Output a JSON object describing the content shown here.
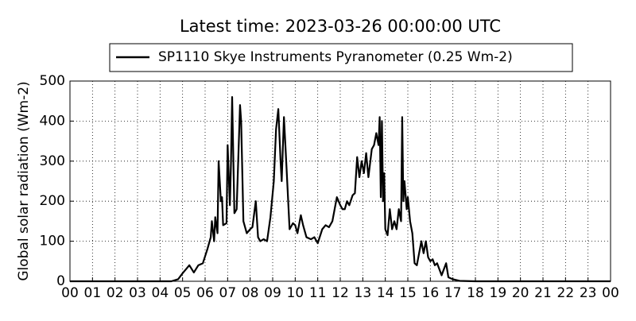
{
  "chart_data": {
    "type": "line",
    "title": "Latest time: 2023-03-26 00:00:00 UTC",
    "y_label": "Global solar radiation (Wm-2)",
    "grid": true,
    "legend_position": "top",
    "xlim": [
      0,
      24
    ],
    "ylim": [
      0,
      500
    ],
    "yticks": [
      0,
      100,
      200,
      300,
      400,
      500
    ],
    "xticks": [
      {
        "value": 0,
        "label": "00"
      },
      {
        "value": 1,
        "label": "01"
      },
      {
        "value": 2,
        "label": "02"
      },
      {
        "value": 3,
        "label": "03"
      },
      {
        "value": 4,
        "label": "04"
      },
      {
        "value": 5,
        "label": "05"
      },
      {
        "value": 6,
        "label": "06"
      },
      {
        "value": 7,
        "label": "07"
      },
      {
        "value": 8,
        "label": "08"
      },
      {
        "value": 9,
        "label": "09"
      },
      {
        "value": 10,
        "label": "10"
      },
      {
        "value": 11,
        "label": "11"
      },
      {
        "value": 12,
        "label": "12"
      },
      {
        "value": 13,
        "label": "13"
      },
      {
        "value": 14,
        "label": "14"
      },
      {
        "value": 15,
        "label": "15"
      },
      {
        "value": 16,
        "label": "16"
      },
      {
        "value": 17,
        "label": "17"
      },
      {
        "value": 18,
        "label": "18"
      },
      {
        "value": 19,
        "label": "19"
      },
      {
        "value": 20,
        "label": "20"
      },
      {
        "value": 21,
        "label": "21"
      },
      {
        "value": 22,
        "label": "22"
      },
      {
        "value": 23,
        "label": "23"
      },
      {
        "value": 24,
        "label": "00"
      }
    ],
    "x": [
      0,
      4.5,
      4.8,
      5.0,
      5.3,
      5.5,
      5.7,
      5.9,
      6.1,
      6.25,
      6.3,
      6.4,
      6.45,
      6.55,
      6.6,
      6.7,
      6.75,
      6.8,
      6.95,
      7.0,
      7.1,
      7.15,
      7.2,
      7.3,
      7.4,
      7.55,
      7.6,
      7.7,
      7.85,
      8.0,
      8.1,
      8.25,
      8.35,
      8.45,
      8.6,
      8.75,
      8.9,
      9.05,
      9.15,
      9.25,
      9.35,
      9.4,
      9.5,
      9.6,
      9.75,
      9.9,
      10.0,
      10.1,
      10.25,
      10.35,
      10.5,
      10.7,
      10.85,
      11.0,
      11.2,
      11.35,
      11.5,
      11.65,
      11.85,
      12.0,
      12.1,
      12.2,
      12.3,
      12.4,
      12.55,
      12.65,
      12.75,
      12.85,
      12.95,
      13.05,
      13.15,
      13.25,
      13.4,
      13.5,
      13.6,
      13.7,
      13.75,
      13.8,
      13.85,
      13.9,
      13.95,
      14.0,
      14.1,
      14.2,
      14.3,
      14.4,
      14.5,
      14.6,
      14.7,
      14.75,
      14.8,
      14.85,
      14.95,
      15.0,
      15.1,
      15.2,
      15.3,
      15.4,
      15.5,
      15.6,
      15.7,
      15.8,
      15.9,
      16.0,
      16.1,
      16.2,
      16.3,
      16.4,
      16.5,
      16.7,
      16.8,
      17.0,
      17.3,
      18.0,
      24.0
    ],
    "series": [
      {
        "name": "SP1110 Skye Instruments Pyranometer (0.25 Wm-2)",
        "color": "#000000",
        "values": [
          0,
          0,
          5,
          20,
          40,
          22,
          40,
          45,
          80,
          110,
          150,
          100,
          160,
          120,
          300,
          200,
          210,
          140,
          145,
          340,
          190,
          300,
          460,
          170,
          180,
          440,
          400,
          150,
          120,
          130,
          135,
          200,
          110,
          100,
          105,
          100,
          160,
          250,
          380,
          430,
          300,
          250,
          410,
          300,
          130,
          145,
          140,
          120,
          165,
          140,
          110,
          105,
          110,
          95,
          130,
          140,
          135,
          150,
          210,
          190,
          180,
          180,
          200,
          190,
          215,
          220,
          310,
          260,
          300,
          270,
          320,
          260,
          330,
          340,
          370,
          340,
          410,
          210,
          400,
          200,
          270,
          130,
          115,
          180,
          130,
          150,
          130,
          180,
          150,
          410,
          200,
          250,
          180,
          210,
          150,
          120,
          45,
          40,
          70,
          100,
          70,
          100,
          60,
          50,
          55,
          40,
          45,
          30,
          15,
          45,
          10,
          5,
          1,
          0,
          0
        ]
      }
    ]
  }
}
